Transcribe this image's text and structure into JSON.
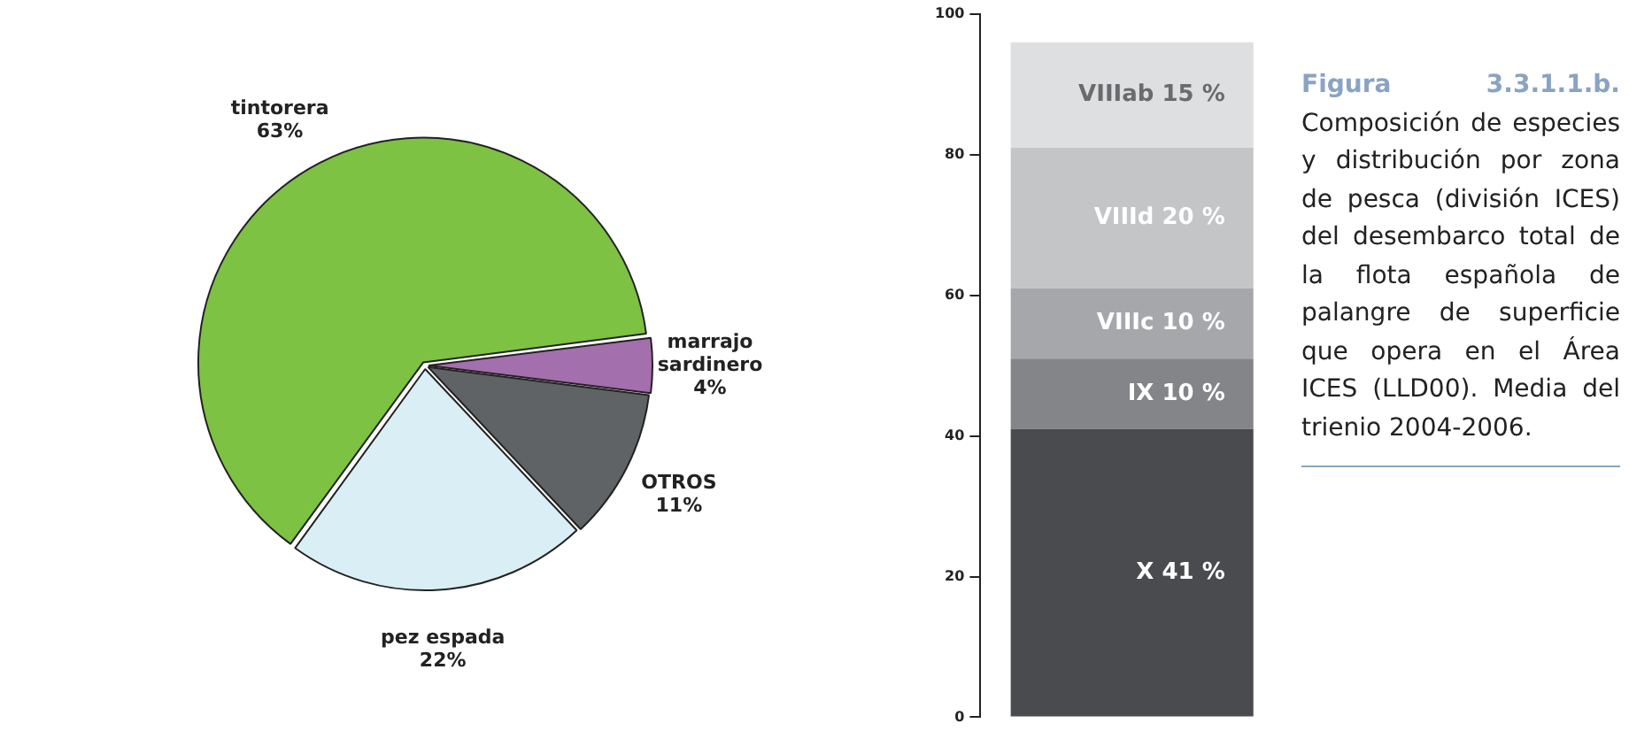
{
  "chart_data": [
    {
      "type": "pie",
      "categories": [
        "tintorera",
        "marrajo sardinero",
        "OTROS",
        "pez espada"
      ],
      "values": [
        63,
        4,
        11,
        22
      ],
      "colors": [
        "#7dc242",
        "#a46fad",
        "#5f6366",
        "#d9eff5"
      ],
      "value_labels": [
        "63%",
        "4%",
        "11%",
        "22%"
      ],
      "legend": false
    },
    {
      "type": "bar",
      "categories": [
        null
      ],
      "stacked": true,
      "ylim": [
        0,
        100
      ],
      "yticks": [
        0,
        20,
        40,
        60,
        80,
        100
      ],
      "grid": false,
      "legend": false,
      "series": [
        {
          "color": "#4a4b4f",
          "values": [
            41
          ],
          "value_labels": [
            "X 41 %"
          ]
        },
        {
          "color": "#848589",
          "values": [
            10
          ],
          "value_labels": [
            "IX 10 %"
          ]
        },
        {
          "color": "#a6a7aa",
          "values": [
            10
          ],
          "value_labels": [
            "VIIIc 10 %"
          ]
        },
        {
          "color": "#c4c5c7",
          "values": [
            20
          ],
          "value_labels": [
            "VIIId 20 %"
          ]
        },
        {
          "color": "#dedfe0",
          "values": [
            15
          ],
          "value_labels": [
            "VIIIab 15 %"
          ]
        }
      ]
    },
    {
      "type": "other",
      "title": "Figura 3.3.1.1.b.",
      "annotations": [
        "Composición de especies y distribución por zona de pesca (división ICES) del desembarco total de la flota española de palangre de superficie que opera en el Área ICES (LLD00). Media del trienio 2004-2006."
      ]
    }
  ]
}
